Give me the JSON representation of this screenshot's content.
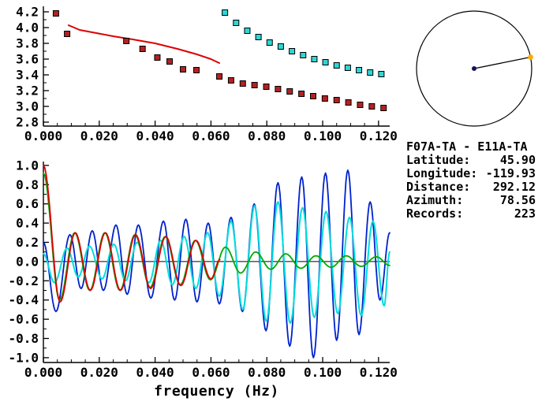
{
  "info": {
    "station_pair": "F07A-TA - E11A-TA",
    "fields": [
      {
        "label": "Latitude:",
        "value": "45.90"
      },
      {
        "label": "Longitude:",
        "value": "-119.93"
      },
      {
        "label": "Distance:",
        "value": "292.12"
      },
      {
        "label": "Azimuth:",
        "value": "78.56"
      },
      {
        "label": "Records:",
        "value": "223"
      }
    ]
  },
  "azimuth_plot": {
    "azimuth_deg": 78.56,
    "circle_color": "#000000",
    "line_color": "#000000",
    "center_dot_color": "#14145a",
    "endpoint_dot_color": "#ffaa00"
  },
  "chart_data": [
    {
      "type": "scatter",
      "title": "",
      "xlabel": "",
      "ylabel": "",
      "xlim": [
        0,
        0.124
      ],
      "ylim": [
        2.75,
        4.27
      ],
      "grid": false,
      "xticks": {
        "values": [
          0.0,
          0.02,
          0.04,
          0.06,
          0.08,
          0.1,
          0.12
        ],
        "labels": [
          "0.000",
          "0.020",
          "0.040",
          "0.060",
          "0.080",
          "0.100",
          "0.120"
        ],
        "minor_step": 0.005
      },
      "yticks": {
        "values": [
          2.8,
          3.0,
          3.2,
          3.4,
          3.6,
          3.8,
          4.0,
          4.2
        ],
        "labels": [
          "2.8",
          "3.0",
          "3.2",
          "3.4",
          "3.6",
          "3.8",
          "4.0",
          "4.2"
        ],
        "minor_step": 0.1
      },
      "series": [
        {
          "name": "model-dispersion-line",
          "style": "line",
          "color": "#dd0000",
          "width": 2,
          "points": [
            [
              0.009,
              4.03
            ],
            [
              0.013,
              3.97
            ],
            [
              0.019,
              3.93
            ],
            [
              0.025,
              3.89
            ],
            [
              0.032,
              3.85
            ],
            [
              0.04,
              3.8
            ],
            [
              0.048,
              3.73
            ],
            [
              0.055,
              3.66
            ],
            [
              0.06,
              3.6
            ],
            [
              0.063,
              3.55
            ]
          ]
        },
        {
          "name": "red-square-dispersion",
          "style": "squares",
          "color": "#b22222",
          "points": [
            [
              0.0045,
              4.18
            ],
            [
              0.0085,
              3.92
            ],
            [
              0.0297,
              3.83
            ],
            [
              0.0355,
              3.73
            ],
            [
              0.0408,
              3.62
            ],
            [
              0.0452,
              3.57
            ],
            [
              0.05,
              3.47
            ],
            [
              0.0548,
              3.46
            ],
            [
              0.063,
              3.38
            ],
            [
              0.0672,
              3.33
            ],
            [
              0.0714,
              3.29
            ],
            [
              0.0756,
              3.27
            ],
            [
              0.0798,
              3.25
            ],
            [
              0.084,
              3.22
            ],
            [
              0.0882,
              3.19
            ],
            [
              0.0924,
              3.16
            ],
            [
              0.0966,
              3.13
            ],
            [
              0.1008,
              3.1
            ],
            [
              0.105,
              3.08
            ],
            [
              0.1092,
              3.05
            ],
            [
              0.1134,
              3.02
            ],
            [
              0.1176,
              3.0
            ],
            [
              0.1218,
              2.98
            ]
          ]
        },
        {
          "name": "cyan-square-dispersion",
          "style": "squares",
          "color": "#30d5d5",
          "points": [
            [
              0.065,
              4.19
            ],
            [
              0.069,
              4.06
            ],
            [
              0.073,
              3.96
            ],
            [
              0.077,
              3.88
            ],
            [
              0.081,
              3.81
            ],
            [
              0.085,
              3.76
            ],
            [
              0.089,
              3.7
            ],
            [
              0.093,
              3.65
            ],
            [
              0.097,
              3.6
            ],
            [
              0.101,
              3.56
            ],
            [
              0.105,
              3.52
            ],
            [
              0.109,
              3.49
            ],
            [
              0.113,
              3.46
            ],
            [
              0.117,
              3.43
            ],
            [
              0.121,
              3.41
            ]
          ]
        }
      ]
    },
    {
      "type": "line",
      "title": "",
      "xlabel": "frequency (Hz)",
      "ylabel": "",
      "xlim": [
        0,
        0.124
      ],
      "ylim": [
        -1.05,
        1.04
      ],
      "zero_line": true,
      "grid": false,
      "xticks": {
        "values": [
          0.0,
          0.02,
          0.04,
          0.06,
          0.08,
          0.1,
          0.12
        ],
        "labels": [
          "0.000",
          "0.020",
          "0.040",
          "0.060",
          "0.080",
          "0.100",
          "0.120"
        ],
        "minor_step": 0.005
      },
      "yticks": {
        "values": [
          -1.0,
          -0.8,
          -0.6,
          -0.4,
          -0.2,
          0.0,
          0.2,
          0.4,
          0.6,
          0.8,
          1.0
        ],
        "labels": [
          "-1.0",
          "-0.8",
          "-0.6",
          "-0.4",
          "-0.2",
          "0.0",
          "0.2",
          "0.4",
          "0.6",
          "0.8",
          "1.0"
        ],
        "minor_step": 0.1
      },
      "series": [
        {
          "name": "blue-correlation-wave",
          "style": "wave",
          "color": "#0022cc",
          "width": 1.8,
          "points": [
            [
              0.0,
              0.2
            ],
            [
              0.0045,
              -0.52
            ],
            [
              0.0095,
              0.28
            ],
            [
              0.0135,
              -0.28
            ],
            [
              0.0175,
              0.32
            ],
            [
              0.0215,
              -0.3
            ],
            [
              0.026,
              0.38
            ],
            [
              0.03,
              -0.34
            ],
            [
              0.034,
              0.38
            ],
            [
              0.0385,
              -0.38
            ],
            [
              0.043,
              0.42
            ],
            [
              0.047,
              -0.4
            ],
            [
              0.051,
              0.44
            ],
            [
              0.055,
              -0.42
            ],
            [
              0.059,
              0.4
            ],
            [
              0.063,
              -0.44
            ],
            [
              0.0672,
              0.46
            ],
            [
              0.0713,
              -0.52
            ],
            [
              0.0755,
              0.6
            ],
            [
              0.0797,
              -0.72
            ],
            [
              0.084,
              0.82
            ],
            [
              0.0882,
              -0.88
            ],
            [
              0.0925,
              0.88
            ],
            [
              0.0967,
              -1.0
            ],
            [
              0.101,
              0.92
            ],
            [
              0.105,
              -0.82
            ],
            [
              0.109,
              0.95
            ],
            [
              0.113,
              -0.76
            ],
            [
              0.117,
              0.62
            ],
            [
              0.1205,
              -0.4
            ],
            [
              0.124,
              0.3
            ]
          ]
        },
        {
          "name": "cyan-correlation-wave",
          "style": "wave",
          "color": "#00dddd",
          "width": 2,
          "points": [
            [
              0.0,
              0.08
            ],
            [
              0.004,
              -0.22
            ],
            [
              0.0085,
              0.14
            ],
            [
              0.0125,
              -0.16
            ],
            [
              0.0165,
              0.16
            ],
            [
              0.021,
              -0.18
            ],
            [
              0.0252,
              0.18
            ],
            [
              0.0294,
              -0.2
            ],
            [
              0.0336,
              0.2
            ],
            [
              0.0378,
              -0.22
            ],
            [
              0.042,
              0.22
            ],
            [
              0.0462,
              -0.24
            ],
            [
              0.0504,
              0.26
            ],
            [
              0.0546,
              -0.28
            ],
            [
              0.0588,
              0.3
            ],
            [
              0.063,
              -0.36
            ],
            [
              0.0672,
              0.42
            ],
            [
              0.0714,
              -0.5
            ],
            [
              0.0756,
              0.58
            ],
            [
              0.0798,
              -0.62
            ],
            [
              0.084,
              0.62
            ],
            [
              0.0884,
              -0.64
            ],
            [
              0.0928,
              0.56
            ],
            [
              0.097,
              -0.58
            ],
            [
              0.1012,
              0.52
            ],
            [
              0.1054,
              -0.54
            ],
            [
              0.1096,
              0.46
            ],
            [
              0.1138,
              -0.56
            ],
            [
              0.118,
              0.42
            ],
            [
              0.122,
              -0.46
            ],
            [
              0.124,
              0.1
            ]
          ]
        },
        {
          "name": "green-correlation-wave",
          "style": "wave",
          "color": "#00aa00",
          "width": 1.8,
          "points": [
            [
              0.0,
              0.92
            ],
            [
              0.0058,
              -0.4
            ],
            [
              0.0112,
              0.3
            ],
            [
              0.0166,
              -0.3
            ],
            [
              0.022,
              0.3
            ],
            [
              0.0274,
              -0.3
            ],
            [
              0.0328,
              0.28
            ],
            [
              0.0382,
              -0.27
            ],
            [
              0.0436,
              0.26
            ],
            [
              0.049,
              -0.24
            ],
            [
              0.0544,
              0.22
            ],
            [
              0.0598,
              -0.19
            ],
            [
              0.0652,
              0.15
            ],
            [
              0.0706,
              -0.12
            ],
            [
              0.076,
              0.1
            ],
            [
              0.0814,
              -0.08
            ],
            [
              0.0868,
              0.08
            ],
            [
              0.0922,
              -0.07
            ],
            [
              0.0976,
              0.06
            ],
            [
              0.103,
              -0.06
            ],
            [
              0.1084,
              0.06
            ],
            [
              0.1138,
              -0.05
            ],
            [
              0.1192,
              0.05
            ],
            [
              0.124,
              -0.04
            ]
          ]
        },
        {
          "name": "red-correlation-wave",
          "style": "wave",
          "color": "#dd0000",
          "width": 1.8,
          "points": [
            [
              0.0,
              1.0
            ],
            [
              0.006,
              -0.42
            ],
            [
              0.0114,
              0.3
            ],
            [
              0.0168,
              -0.3
            ],
            [
              0.0222,
              0.3
            ],
            [
              0.0276,
              -0.3
            ],
            [
              0.033,
              0.28
            ],
            [
              0.0384,
              -0.28
            ],
            [
              0.0438,
              0.26
            ],
            [
              0.0492,
              -0.25
            ],
            [
              0.0546,
              0.22
            ],
            [
              0.06,
              -0.18
            ],
            [
              0.0632,
              0.02
            ]
          ]
        }
      ]
    }
  ]
}
